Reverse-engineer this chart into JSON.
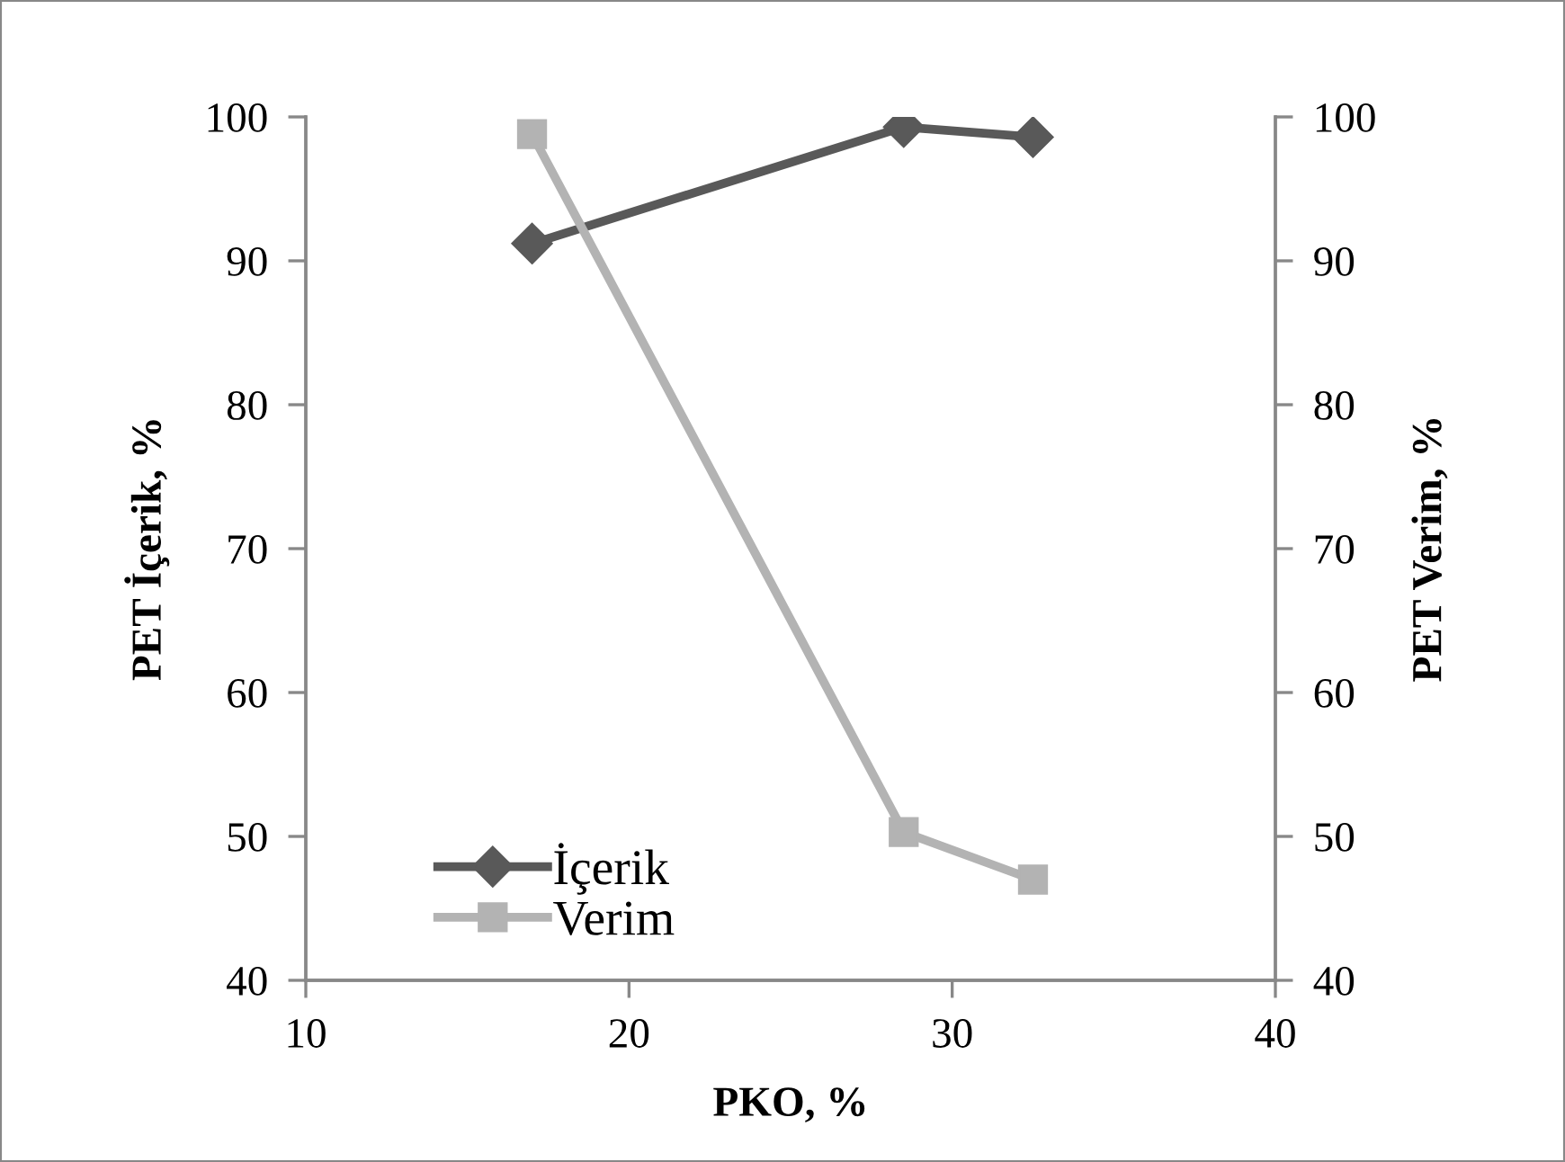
{
  "chart_data": {
    "type": "line",
    "x": [
      17,
      28.5,
      32.5
    ],
    "series": [
      {
        "name": "İçerik",
        "color": "#595959",
        "values": [
          91.2,
          99.3,
          98.6
        ],
        "marker": "diamond"
      },
      {
        "name": "Verim",
        "color": "#b3b3b3",
        "values": [
          98.8,
          50.3,
          47.0
        ],
        "marker": "square",
        "axis": "y2"
      }
    ],
    "xlabel": "PKO, %",
    "ylabel": "PET İçerik, %",
    "y2label": "PET Verim, %",
    "xlim": [
      10,
      40
    ],
    "xticks": [
      10,
      20,
      30,
      40
    ],
    "ylim": [
      40,
      100
    ],
    "yticks": [
      40,
      50,
      60,
      70,
      80,
      90,
      100
    ],
    "y2lim": [
      40,
      100
    ],
    "y2ticks": [
      40,
      50,
      60,
      70,
      80,
      90,
      100
    ],
    "grid": false,
    "legend": "bottom left",
    "line_style": "solid"
  }
}
